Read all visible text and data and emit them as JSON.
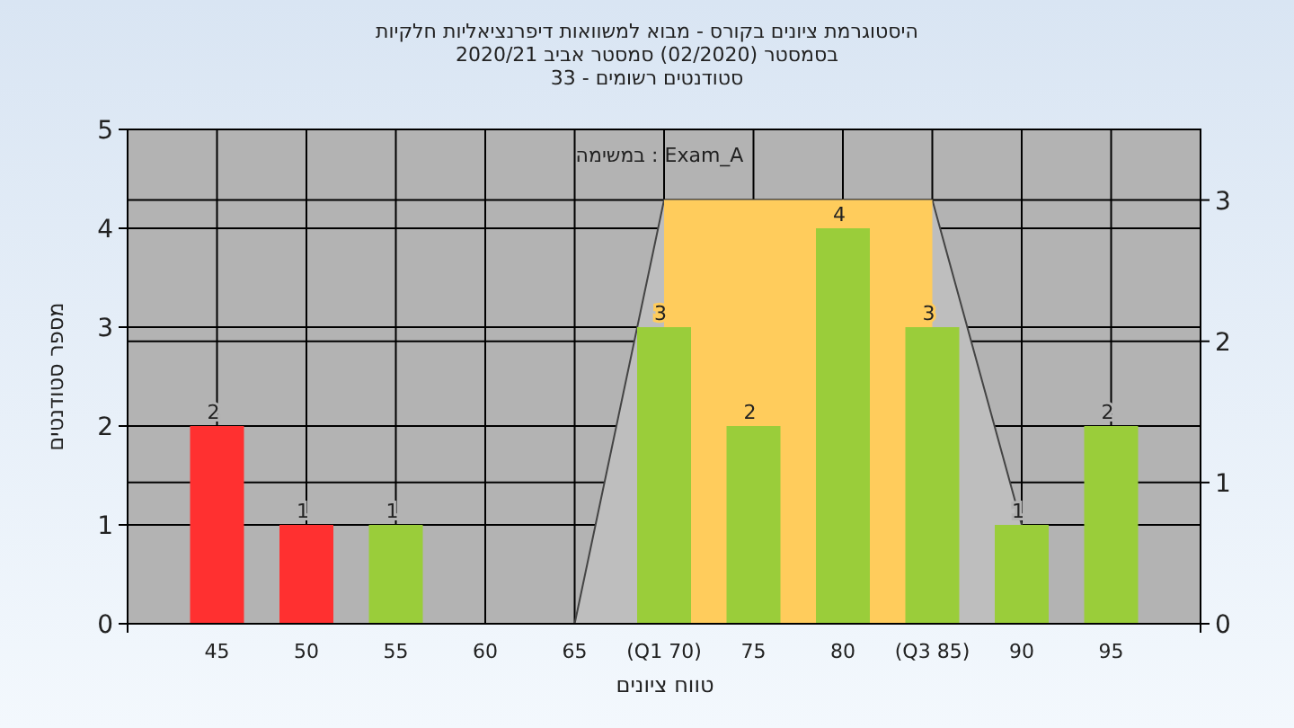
{
  "chart_data": {
    "type": "bar",
    "title": "היסטוגרמת ציונים בקורס - מבוא למשוואות דיפרנציאליות חלקיות",
    "subtitle": "בסמסטר  (02/2020)  סמסטר אביב 2020/21\nסטודנטים רשומים - 33",
    "xlabel": "טווח ציונים",
    "ylabel": "מספר סטודנטים",
    "annotations": [
      "במשימה : Exam_A"
    ],
    "categories": [
      "45",
      "50",
      "55",
      "60",
      "65",
      "(Q1 70)",
      "75",
      "80",
      "(Q3 85)",
      "90",
      "95"
    ],
    "series": [
      {
        "type": "area",
        "axis": "y2",
        "color": "#bebebe",
        "values": [
          null,
          null,
          null,
          null,
          0,
          3,
          3,
          3,
          3,
          0.7,
          null
        ]
      },
      {
        "type": "area",
        "axis": "y2",
        "color": "#ffcc5c",
        "values": [
          null,
          null,
          null,
          null,
          null,
          3,
          3,
          3,
          3,
          null,
          null
        ]
      },
      {
        "values": [
          2,
          1,
          1,
          0,
          0,
          3,
          2,
          4,
          3,
          1,
          2
        ],
        "colors": [
          "#ff3030",
          "#ff3030",
          "#9acd3a",
          "#9acd3a",
          "#9acd3a",
          "#9acd3a",
          "#9acd3a",
          "#9acd3a",
          "#9acd3a",
          "#9acd3a",
          "#9acd3a"
        ],
        "value_labels": [
          "2",
          "1",
          "1",
          null,
          null,
          "3",
          "2",
          "4",
          "3",
          "1",
          "2"
        ]
      }
    ],
    "ylim": [
      0,
      5
    ],
    "yticks": [
      0,
      1,
      2,
      3,
      4,
      5
    ],
    "y2lim": [
      0,
      3.5
    ],
    "y2ticks": [
      0,
      1,
      2,
      3
    ],
    "grid": true
  }
}
